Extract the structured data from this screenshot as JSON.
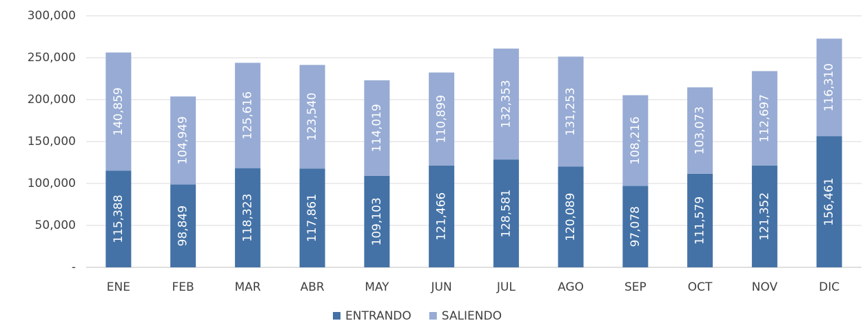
{
  "chart_data": {
    "type": "stacked_bar",
    "categories": [
      "ENE",
      "FEB",
      "MAR",
      "ABR",
      "MAY",
      "JUN",
      "JUL",
      "AGO",
      "SEP",
      "OCT",
      "NOV",
      "DIC"
    ],
    "series": [
      {
        "name": "ENTRANDO",
        "color": "#4472a6",
        "values": [
          115388,
          98849,
          118323,
          117861,
          109103,
          121466,
          128581,
          120089,
          97078,
          111579,
          121352,
          156461
        ],
        "value_labels": [
          "115,388",
          "98,849",
          "118,323",
          "117,861",
          "109,103",
          "121,466",
          "128,581",
          "120,089",
          "97,078",
          "111,579",
          "121,352",
          "156,461"
        ]
      },
      {
        "name": "SALIENDO",
        "color": "#97abd4",
        "values": [
          140859,
          104949,
          125616,
          123540,
          114019,
          110899,
          132353,
          131253,
          108216,
          103073,
          112697,
          116310
        ],
        "value_labels": [
          "140,859",
          "104,949",
          "125,616",
          "123,540",
          "114,019",
          "110,899",
          "132,353",
          "131,253",
          "108,216",
          "103,073",
          "112,697",
          "116,310"
        ]
      }
    ],
    "ylim": [
      0,
      300000
    ],
    "yticks": [
      {
        "value": 0,
        "label": "-"
      },
      {
        "value": 50000,
        "label": "50,000"
      },
      {
        "value": 100000,
        "label": "100,000"
      },
      {
        "value": 150000,
        "label": "150,000"
      },
      {
        "value": 200000,
        "label": "200,000"
      },
      {
        "value": 250000,
        "label": "250,000"
      },
      {
        "value": 300000,
        "label": "300,000"
      }
    ],
    "grid": true,
    "legend": "bottom"
  }
}
